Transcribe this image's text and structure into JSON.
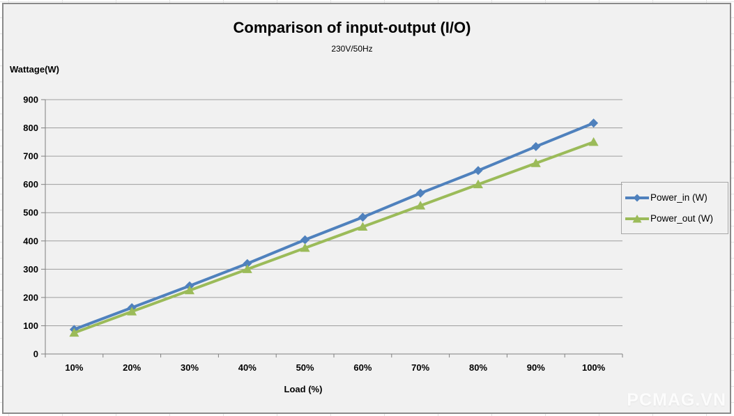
{
  "chart": {
    "watermark": "PCMAG.VN"
  },
  "chart_data": {
    "type": "line",
    "title": "Comparison of input-output (I/O)",
    "subtitle": "230V/50Hz",
    "xlabel": "Load (%)",
    "ylabel": "Wattage(W)",
    "categories": [
      "10%",
      "20%",
      "30%",
      "40%",
      "50%",
      "60%",
      "70%",
      "80%",
      "90%",
      "100%"
    ],
    "series": [
      {
        "name": "Power_in (W)",
        "marker": "diamond",
        "color": "#4F81BD",
        "values": [
          87,
          164,
          241,
          320,
          404,
          484,
          569,
          649,
          734,
          817
        ]
      },
      {
        "name": "Power_out (W)",
        "marker": "triangle",
        "color": "#9BBB59",
        "values": [
          75,
          150,
          225,
          300,
          375,
          450,
          525,
          600,
          675,
          750
        ]
      }
    ],
    "ylim": [
      0,
      900
    ],
    "y_ticks": [
      "0",
      "100",
      "200",
      "300",
      "400",
      "500",
      "600",
      "700",
      "800",
      "900"
    ],
    "grid": true,
    "legend_position": "right",
    "colors": {
      "gridline": "#9e9e9e",
      "axis": "#808080",
      "background": "#F1F1F1",
      "text": "#000000"
    }
  }
}
